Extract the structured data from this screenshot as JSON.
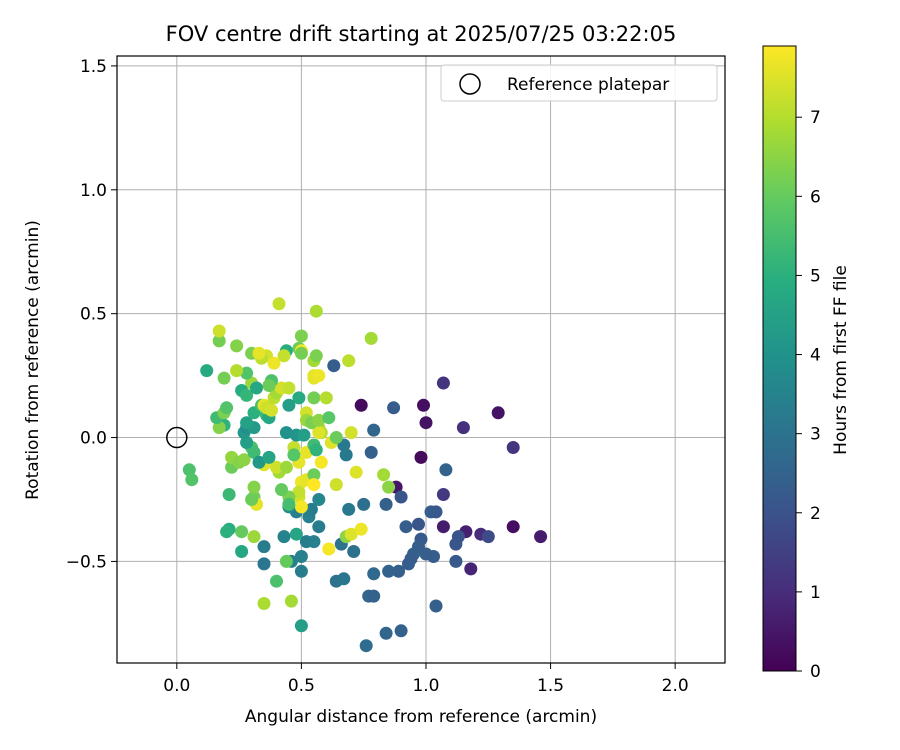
{
  "chart_data": {
    "type": "scatter",
    "title": "FOV centre drift starting at 2025/07/25 03:22:05",
    "xlabel": "Angular distance from reference (arcmin)",
    "ylabel": "Rotation from reference (arcmin)",
    "xlim": [
      -0.24,
      2.2
    ],
    "ylim": [
      -0.91,
      1.54
    ],
    "xticks": [
      0.0,
      0.5,
      1.0,
      1.5,
      2.0
    ],
    "xtick_labels": [
      "0.0",
      "0.5",
      "1.0",
      "1.5",
      "2.0"
    ],
    "yticks": [
      -0.5,
      0.0,
      0.5,
      1.0,
      1.5
    ],
    "ytick_labels": [
      "−0.5",
      "0.0",
      "0.5",
      "1.0",
      "1.5"
    ],
    "grid": true,
    "legend": {
      "placement": "top-right",
      "entries": [
        "Reference platepar"
      ]
    },
    "reference_point": {
      "label": "Reference platepar",
      "x": 0.0,
      "y": 0.0,
      "marker": "open-circle"
    },
    "colorbar": {
      "label": "Hours from first FF file",
      "colormap": "viridis",
      "range": [
        0,
        7.9
      ],
      "ticks": [
        0,
        1,
        2,
        3,
        4,
        5,
        6,
        7
      ],
      "tick_labels": [
        "0",
        "1",
        "2",
        "3",
        "4",
        "5",
        "6",
        "7"
      ]
    },
    "series": [
      {
        "marker": "filled-circle",
        "points": [
          [
            0.74,
            0.13,
            0.2
          ],
          [
            0.99,
            0.13,
            0.3
          ],
          [
            1.0,
            0.06,
            0.4
          ],
          [
            0.98,
            -0.08,
            0.2
          ],
          [
            0.88,
            -0.2,
            0.5
          ],
          [
            1.29,
            0.1,
            0.4
          ],
          [
            1.35,
            -0.36,
            0.3
          ],
          [
            1.46,
            -0.4,
            0.6
          ],
          [
            1.18,
            -0.53,
            0.8
          ],
          [
            1.07,
            -0.36,
            0.6
          ],
          [
            1.16,
            -0.38,
            0.7
          ],
          [
            1.22,
            -0.39,
            1.0
          ],
          [
            1.35,
            -0.04,
            1.2
          ],
          [
            1.15,
            0.04,
            1.1
          ],
          [
            1.07,
            0.22,
            1.2
          ],
          [
            1.07,
            -0.23,
            1.3
          ],
          [
            1.25,
            -0.4,
            1.8
          ],
          [
            1.13,
            -0.4,
            2.0
          ],
          [
            1.12,
            -0.43,
            2.1
          ],
          [
            1.12,
            -0.5,
            2.2
          ],
          [
            1.08,
            -0.13,
            2.5
          ],
          [
            1.02,
            -0.3,
            2.3
          ],
          [
            1.04,
            -0.3,
            2.2
          ],
          [
            0.97,
            -0.35,
            2.1
          ],
          [
            0.9,
            -0.24,
            2.1
          ],
          [
            0.92,
            -0.36,
            2.3
          ],
          [
            0.98,
            -0.41,
            2.2
          ],
          [
            0.97,
            -0.44,
            2.3
          ],
          [
            0.95,
            -0.47,
            2.4
          ],
          [
            0.94,
            -0.49,
            2.3
          ],
          [
            1.0,
            -0.47,
            2.4
          ],
          [
            1.03,
            -0.48,
            2.3
          ],
          [
            0.93,
            -0.51,
            2.3
          ],
          [
            0.89,
            -0.54,
            2.4
          ],
          [
            0.85,
            -0.54,
            2.5
          ],
          [
            0.79,
            -0.55,
            2.7
          ],
          [
            0.77,
            -0.64,
            2.6
          ],
          [
            0.79,
            -0.64,
            2.5
          ],
          [
            0.84,
            -0.79,
            2.6
          ],
          [
            0.9,
            -0.78,
            2.5
          ],
          [
            1.04,
            -0.68,
            2.4
          ],
          [
            0.76,
            -0.84,
            2.8
          ],
          [
            0.64,
            -0.58,
            3.0
          ],
          [
            0.67,
            -0.57,
            3.1
          ],
          [
            0.71,
            -0.46,
            2.9
          ],
          [
            0.66,
            -0.43,
            3.0
          ],
          [
            0.69,
            -0.29,
            3.2
          ],
          [
            0.75,
            -0.27,
            2.9
          ],
          [
            0.78,
            -0.06,
            2.4
          ],
          [
            0.79,
            0.03,
            2.6
          ],
          [
            0.84,
            -0.27,
            2.4
          ],
          [
            0.87,
            0.12,
            2.3
          ],
          [
            0.63,
            0.29,
            2.3
          ],
          [
            0.67,
            -0.03,
            3.2
          ],
          [
            0.68,
            -0.07,
            3.2
          ],
          [
            0.53,
            -0.32,
            3.4
          ],
          [
            0.52,
            -0.42,
            3.3
          ],
          [
            0.55,
            -0.42,
            3.4
          ],
          [
            0.57,
            -0.36,
            3.3
          ],
          [
            0.57,
            -0.25,
            3.6
          ],
          [
            0.54,
            -0.29,
            3.3
          ],
          [
            0.48,
            -0.3,
            3.4
          ],
          [
            0.45,
            -0.28,
            3.7
          ],
          [
            0.43,
            -0.4,
            3.5
          ],
          [
            0.5,
            -0.48,
            3.4
          ],
          [
            0.46,
            -0.5,
            3.4
          ],
          [
            0.5,
            -0.54,
            3.3
          ],
          [
            0.35,
            -0.44,
            3.3
          ],
          [
            0.35,
            -0.51,
            3.1
          ],
          [
            0.5,
            -0.76,
            4.4
          ],
          [
            0.4,
            -0.58,
            5.6
          ],
          [
            0.46,
            -0.66,
            6.8
          ],
          [
            0.35,
            -0.67,
            6.9
          ],
          [
            0.31,
            -0.4,
            6.7
          ],
          [
            0.44,
            -0.5,
            6.0
          ],
          [
            0.48,
            -0.39,
            4.6
          ],
          [
            0.26,
            -0.46,
            4.7
          ],
          [
            0.21,
            -0.37,
            4.9
          ],
          [
            0.2,
            -0.38,
            5.0
          ],
          [
            0.21,
            -0.23,
            5.3
          ],
          [
            0.05,
            -0.13,
            5.6
          ],
          [
            0.06,
            -0.17,
            5.7
          ],
          [
            0.22,
            -0.12,
            6.1
          ],
          [
            0.22,
            -0.08,
            6.6
          ],
          [
            0.25,
            -0.1,
            6.4
          ],
          [
            0.27,
            -0.09,
            6.5
          ],
          [
            0.3,
            -0.04,
            5.6
          ],
          [
            0.31,
            -0.06,
            5.4
          ],
          [
            0.28,
            -0.02,
            4.4
          ],
          [
            0.27,
            0.02,
            4.2
          ],
          [
            0.28,
            0.04,
            3.9
          ],
          [
            0.31,
            0.04,
            4.3
          ],
          [
            0.28,
            0.06,
            4.5
          ],
          [
            0.31,
            0.1,
            5.0
          ],
          [
            0.36,
            0.09,
            5.3
          ],
          [
            0.37,
            0.08,
            4.7
          ],
          [
            0.34,
            0.13,
            5.5
          ],
          [
            0.35,
            0.13,
            7.6
          ],
          [
            0.36,
            0.12,
            7.3
          ],
          [
            0.38,
            0.11,
            7.4
          ],
          [
            0.39,
            0.16,
            7.1
          ],
          [
            0.4,
            0.18,
            6.8
          ],
          [
            0.42,
            0.2,
            7.4
          ],
          [
            0.45,
            0.2,
            7.2
          ],
          [
            0.45,
            0.13,
            4.4
          ],
          [
            0.49,
            0.16,
            4.8
          ],
          [
            0.55,
            0.16,
            6.2
          ],
          [
            0.55,
            0.24,
            7.6
          ],
          [
            0.52,
            0.1,
            7.4
          ],
          [
            0.52,
            0.07,
            6.7
          ],
          [
            0.57,
            0.04,
            6.9
          ],
          [
            0.58,
            0.02,
            7.0
          ],
          [
            0.57,
            0.02,
            7.5
          ],
          [
            0.6,
            0.16,
            7.0
          ],
          [
            0.55,
            0.25,
            7.6
          ],
          [
            0.57,
            0.25,
            7.7
          ],
          [
            0.55,
            0.31,
            6.8
          ],
          [
            0.56,
            0.33,
            6.3
          ],
          [
            0.49,
            0.36,
            6.1
          ],
          [
            0.5,
            0.35,
            7.8
          ],
          [
            0.5,
            0.41,
            6.3
          ],
          [
            0.5,
            0.34,
            6.2
          ],
          [
            0.44,
            0.35,
            4.9
          ],
          [
            0.43,
            0.33,
            7.2
          ],
          [
            0.36,
            0.33,
            7.4
          ],
          [
            0.39,
            0.3,
            7.7
          ],
          [
            0.38,
            0.23,
            5.6
          ],
          [
            0.37,
            0.21,
            6.1
          ],
          [
            0.3,
            0.22,
            6.7
          ],
          [
            0.28,
            0.26,
            5.7
          ],
          [
            0.24,
            0.27,
            7.0
          ],
          [
            0.19,
            0.24,
            6.2
          ],
          [
            0.12,
            0.27,
            4.8
          ],
          [
            0.17,
            0.39,
            6.2
          ],
          [
            0.17,
            0.43,
            7.3
          ],
          [
            0.24,
            0.37,
            6.4
          ],
          [
            0.3,
            0.34,
            6.3
          ],
          [
            0.34,
            0.32,
            7.1
          ],
          [
            0.33,
            0.34,
            7.6
          ],
          [
            0.41,
            0.54,
            7.2
          ],
          [
            0.56,
            0.51,
            6.9
          ],
          [
            0.69,
            0.31,
            7.1
          ],
          [
            0.78,
            0.4,
            6.8
          ],
          [
            0.7,
            0.02,
            7.4
          ],
          [
            0.72,
            -0.14,
            7.5
          ],
          [
            0.64,
            -0.19,
            7.3
          ],
          [
            0.61,
            -0.45,
            7.8
          ],
          [
            0.68,
            -0.4,
            6.5
          ],
          [
            0.7,
            -0.39,
            7.5
          ],
          [
            0.74,
            -0.37,
            7.7
          ],
          [
            0.83,
            -0.15,
            6.8
          ],
          [
            0.85,
            -0.2,
            6.5
          ],
          [
            0.58,
            -0.1,
            7.8
          ],
          [
            0.62,
            -0.02,
            7.5
          ],
          [
            0.52,
            -0.06,
            7.6
          ],
          [
            0.49,
            -0.1,
            7.6
          ],
          [
            0.5,
            -0.18,
            7.7
          ],
          [
            0.52,
            -0.17,
            7.6
          ],
          [
            0.55,
            -0.15,
            6.1
          ],
          [
            0.55,
            -0.19,
            7.9
          ],
          [
            0.49,
            -0.24,
            7.4
          ],
          [
            0.5,
            -0.28,
            7.8
          ],
          [
            0.49,
            -0.22,
            7.2
          ],
          [
            0.45,
            -0.24,
            6.3
          ],
          [
            0.45,
            -0.27,
            5.5
          ],
          [
            0.42,
            -0.21,
            6.0
          ],
          [
            0.41,
            -0.14,
            6.8
          ],
          [
            0.4,
            -0.12,
            7.3
          ],
          [
            0.35,
            -0.11,
            7.5
          ],
          [
            0.33,
            -0.1,
            4.2
          ],
          [
            0.37,
            -0.08,
            4.6
          ],
          [
            0.44,
            -0.12,
            6.7
          ],
          [
            0.47,
            -0.04,
            7.2
          ],
          [
            0.47,
            -0.07,
            5.8
          ],
          [
            0.44,
            0.02,
            4.0
          ],
          [
            0.48,
            0.01,
            4.1
          ],
          [
            0.51,
            0.01,
            4.4
          ],
          [
            0.55,
            -0.03,
            5.4
          ],
          [
            0.56,
            -0.05,
            5.1
          ],
          [
            0.54,
            0.06,
            6.3
          ],
          [
            0.57,
            0.07,
            6.5
          ],
          [
            0.61,
            0.08,
            5.8
          ],
          [
            0.64,
            0.0,
            6.1
          ],
          [
            0.19,
            0.05,
            5.1
          ],
          [
            0.17,
            0.04,
            6.4
          ],
          [
            0.16,
            0.08,
            5.4
          ],
          [
            0.19,
            0.1,
            6.3
          ],
          [
            0.2,
            0.12,
            5.7
          ],
          [
            0.26,
            0.19,
            4.9
          ],
          [
            0.28,
            0.17,
            5.2
          ],
          [
            0.32,
            0.2,
            4.7
          ],
          [
            0.31,
            -0.24,
            6.2
          ],
          [
            0.32,
            -0.27,
            7.6
          ],
          [
            0.31,
            -0.2,
            6.4
          ],
          [
            0.3,
            -0.25,
            6.1
          ],
          [
            0.26,
            -0.38,
            6.0
          ]
        ]
      }
    ]
  }
}
